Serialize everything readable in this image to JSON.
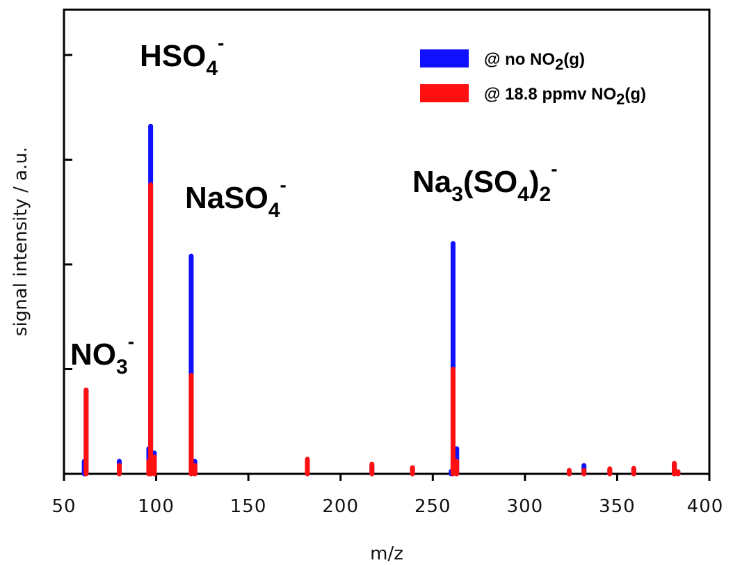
{
  "chart_data": {
    "type": "bar",
    "xlabel": "m/z",
    "ylabel": "signal intensity / a.u.",
    "xlim": [
      50,
      400
    ],
    "x_ticks": [
      "50",
      "100",
      "150",
      "200",
      "250",
      "300",
      "350",
      "400"
    ],
    "ylim": [
      0,
      100
    ],
    "y_ticks_labeled": false,
    "grid": false,
    "legend_position": "top-right",
    "colors": {
      "no_no2": "#1010ff",
      "with_no2": "#ff1010"
    },
    "series": [
      {
        "name": "@ no NO2(g)",
        "label_parts": {
          "prefix": "@ no NO",
          "sub": "2",
          "suffix": "(g)"
        },
        "color": "#1010ff",
        "points": [
          {
            "x": 61,
            "y": 3
          },
          {
            "x": 62,
            "y": 20
          },
          {
            "x": 80,
            "y": 3
          },
          {
            "x": 96,
            "y": 6
          },
          {
            "x": 97,
            "y": 83
          },
          {
            "x": 99,
            "y": 5
          },
          {
            "x": 119,
            "y": 52
          },
          {
            "x": 121,
            "y": 3
          },
          {
            "x": 182,
            "y": 3
          },
          {
            "x": 217,
            "y": 2
          },
          {
            "x": 239,
            "y": 1.3
          },
          {
            "x": 260,
            "y": 0.6
          },
          {
            "x": 261,
            "y": 55
          },
          {
            "x": 263,
            "y": 6
          },
          {
            "x": 324,
            "y": 0.8
          },
          {
            "x": 332,
            "y": 2
          },
          {
            "x": 346,
            "y": 1
          },
          {
            "x": 359,
            "y": 1.2
          },
          {
            "x": 381,
            "y": 2.5
          },
          {
            "x": 383,
            "y": 0.5
          }
        ]
      },
      {
        "name": "@ 18.8 ppmv NO2(g)",
        "label_parts": {
          "prefix": "@ 18.8 ppmv NO",
          "sub": "2",
          "suffix": "(g)"
        },
        "color": "#ff1010",
        "points": [
          {
            "x": 62,
            "y": 20
          },
          {
            "x": 80,
            "y": 2
          },
          {
            "x": 96,
            "y": 3
          },
          {
            "x": 97,
            "y": 69
          },
          {
            "x": 99,
            "y": 4
          },
          {
            "x": 119,
            "y": 23.5
          },
          {
            "x": 121,
            "y": 2
          },
          {
            "x": 182,
            "y": 3.5
          },
          {
            "x": 217,
            "y": 2.3
          },
          {
            "x": 239,
            "y": 1.5
          },
          {
            "x": 261,
            "y": 25
          },
          {
            "x": 263,
            "y": 3
          },
          {
            "x": 324,
            "y": 0.8
          },
          {
            "x": 332,
            "y": 0.8
          },
          {
            "x": 346,
            "y": 1.2
          },
          {
            "x": 359,
            "y": 1.3
          },
          {
            "x": 381,
            "y": 2.5
          },
          {
            "x": 383,
            "y": 0.5
          }
        ]
      }
    ],
    "annotations": [
      {
        "id": "no3",
        "main": "NO",
        "sub": "3",
        "sup": "-"
      },
      {
        "id": "hso4",
        "main": "HSO",
        "sub": "4",
        "sup": "-"
      },
      {
        "id": "naso4",
        "main": "NaSO",
        "sub": "4",
        "sup": "-"
      },
      {
        "id": "na3so42",
        "p1": "Na",
        "s1": "3",
        "p2": "(SO",
        "s2": "4",
        "p3": ")",
        "s3": "2",
        "sup": "-"
      }
    ]
  }
}
